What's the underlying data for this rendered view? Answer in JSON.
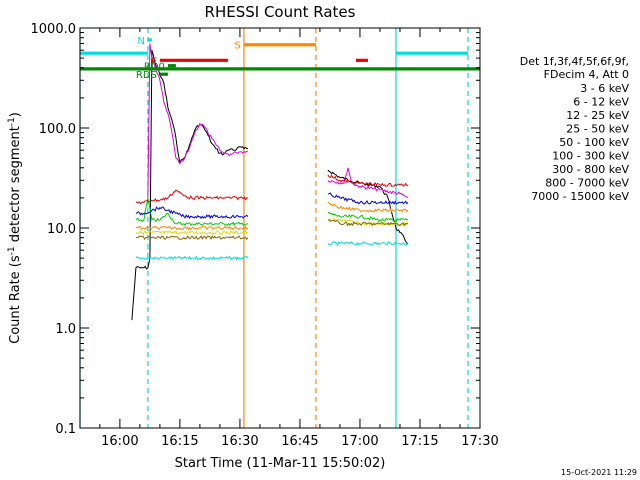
{
  "chart_data": {
    "type": "line",
    "title": "RHESSI Count Rates",
    "xlabel": "Start Time (11-Mar-11 15:50:02)",
    "ylabel_main": "Count Rate (s",
    "ylabel_sup1": "-1",
    "ylabel_mid": " detector segment",
    "ylabel_sup2": "-1",
    "ylabel_end": ")",
    "xlim": [
      "15:50:02",
      "17:30:00"
    ],
    "ylim": [
      0.1,
      1000
    ],
    "yscale": "log",
    "xticks": [
      "16:00",
      "16:15",
      "16:30",
      "16:45",
      "17:00",
      "17:15",
      "17:30"
    ],
    "yticks": [
      {
        "value": 0.1,
        "label": "0.1"
      },
      {
        "value": 1,
        "label": "1.0"
      },
      {
        "value": 10,
        "label": "10.0"
      },
      {
        "value": 100,
        "label": "100.0"
      },
      {
        "value": 1000,
        "label": "1000.0"
      }
    ],
    "legend": {
      "placement": "right",
      "header1": "Det 1f,3f,4f,5f,6f,9f,",
      "header2": "FDecim 4, Att 0"
    },
    "series": [
      {
        "name": "3 - 6 keV",
        "color": "#000000",
        "segments": [
          {
            "x": [
              "16:03",
              "16:04",
              "16:05",
              "16:06",
              "16:07",
              "16:07:30",
              "16:08",
              "16:09",
              "16:10",
              "16:11",
              "16:12",
              "16:13",
              "16:14",
              "16:15",
              "16:16",
              "16:17",
              "16:18",
              "16:19",
              "16:20",
              "16:21",
              "16:22",
              "16:23",
              "16:24",
              "16:25",
              "16:26",
              "16:27",
              "16:28",
              "16:29",
              "16:30",
              "16:31",
              "16:32"
            ],
            "y": [
              1.2,
              4,
              4,
              4,
              4,
              5,
              600,
              420,
              340,
              280,
              160,
              120,
              80,
              45,
              50,
              60,
              80,
              100,
              110,
              100,
              85,
              70,
              62,
              56,
              55,
              60,
              62,
              60,
              65,
              62,
              62
            ]
          },
          {
            "x": [
              "16:52",
              "16:55",
              "17:00",
              "17:05",
              "17:07",
              "17:09",
              "17:10",
              "17:12"
            ],
            "y": [
              38,
              32,
              28,
              26,
              20,
              10,
              9,
              7
            ]
          }
        ]
      },
      {
        "name": "6 - 12 keV",
        "color": "#dd00dd",
        "segments": [
          {
            "x": [
              "16:07",
              "16:07:30",
              "16:08",
              "16:09",
              "16:10",
              "16:11",
              "16:12",
              "16:13",
              "16:14",
              "16:15",
              "16:16",
              "16:17",
              "16:18",
              "16:19",
              "16:20",
              "16:21",
              "16:22",
              "16:23",
              "16:24",
              "16:25",
              "16:26",
              "16:27",
              "16:28",
              "16:29",
              "16:30",
              "16:31",
              "16:32"
            ],
            "y": [
              20,
              700,
              500,
              380,
              300,
              180,
              140,
              90,
              50,
              44,
              48,
              58,
              75,
              95,
              110,
              105,
              90,
              78,
              68,
              60,
              56,
              55,
              55,
              57,
              58,
              58,
              58
            ]
          },
          {
            "x": [
              "16:52",
              "16:56",
              "16:57",
              "16:58",
              "17:00",
              "17:05",
              "17:10",
              "17:12"
            ],
            "y": [
              30,
              28,
              40,
              28,
              26,
              24,
              22,
              20
            ]
          }
        ]
      },
      {
        "name": "12 - 25 keV",
        "color": "#00cc00",
        "segments": [
          {
            "x": [
              "16:04",
              "16:06",
              "16:07",
              "16:08",
              "16:10",
              "16:12",
              "16:14",
              "16:16",
              "16:18",
              "16:20",
              "16:22",
              "16:24",
              "16:26",
              "16:28",
              "16:30",
              "16:32"
            ],
            "y": [
              12,
              12,
              20,
              12,
              12,
              14,
              11,
              11,
              11,
              11,
              11,
              11,
              11,
              11,
              11,
              11
            ]
          },
          {
            "x": [
              "16:52",
              "16:55",
              "17:00",
              "17:05",
              "17:10",
              "17:12"
            ],
            "y": [
              14,
              13,
              13,
              12,
              12,
              12
            ]
          }
        ]
      },
      {
        "name": "25 - 50 keV",
        "color": "#00dddd",
        "segments": [
          {
            "x": [
              "16:04",
              "16:06",
              "16:08",
              "16:10",
              "16:12",
              "16:14",
              "16:16",
              "16:18",
              "16:20",
              "16:22",
              "16:24",
              "16:26",
              "16:28",
              "16:30",
              "16:32"
            ],
            "y": [
              5,
              5,
              5,
              5,
              5,
              5,
              5,
              5,
              5,
              5,
              5,
              5,
              5,
              5,
              5
            ]
          },
          {
            "x": [
              "16:52",
              "16:55",
              "17:00",
              "17:05",
              "17:10",
              "17:12"
            ],
            "y": [
              7,
              7,
              7,
              7,
              7,
              7
            ]
          }
        ]
      },
      {
        "name": "50 - 100 keV",
        "color": "#dddd00",
        "segments": [
          {
            "x": [
              "16:04",
              "16:08",
              "16:12",
              "16:16",
              "16:20",
              "16:24",
              "16:28",
              "16:32"
            ],
            "y": [
              9,
              9,
              9,
              9,
              9,
              9,
              9,
              9
            ]
          },
          {
            "x": [
              "16:52",
              "16:56",
              "17:00",
              "17:04",
              "17:08",
              "17:12"
            ],
            "y": [
              12,
              12,
              11,
              11,
              11,
              11
            ]
          }
        ]
      },
      {
        "name": "100 - 300 keV",
        "color": "#ee0000",
        "segments": [
          {
            "x": [
              "16:04",
              "16:06",
              "16:08",
              "16:10",
              "16:12",
              "16:14",
              "16:16",
              "16:18",
              "16:20",
              "16:22",
              "16:24",
              "16:26",
              "16:28",
              "16:30",
              "16:32"
            ],
            "y": [
              18,
              18,
              19,
              19,
              20,
              24,
              21,
              20,
              20,
              20,
              20,
              20,
              20,
              20,
              20
            ]
          },
          {
            "x": [
              "16:52",
              "16:55",
              "17:00",
              "17:05",
              "17:10",
              "17:12"
            ],
            "y": [
              34,
              30,
              28,
              27,
              27,
              27
            ]
          }
        ]
      },
      {
        "name": "300 - 800 keV",
        "color": "#0000ee",
        "segments": [
          {
            "x": [
              "16:04",
              "16:06",
              "16:08",
              "16:10",
              "16:12",
              "16:14",
              "16:16",
              "16:18",
              "16:20",
              "16:22",
              "16:24",
              "16:26",
              "16:28",
              "16:30",
              "16:32"
            ],
            "y": [
              14,
              14,
              15,
              16,
              15,
              14,
              13,
              13,
              13,
              13,
              13,
              13,
              13,
              13,
              13
            ]
          },
          {
            "x": [
              "16:52",
              "16:55",
              "17:00",
              "17:05",
              "17:10",
              "17:12"
            ],
            "y": [
              22,
              20,
              18,
              18,
              18,
              18
            ]
          }
        ]
      },
      {
        "name": "800 - 7000 keV",
        "color": "#ff8800",
        "segments": [
          {
            "x": [
              "16:04",
              "16:06",
              "16:08",
              "16:10",
              "16:12",
              "16:14",
              "16:16",
              "16:18",
              "16:20",
              "16:22",
              "16:24",
              "16:26",
              "16:28",
              "16:30",
              "16:32"
            ],
            "y": [
              10,
              10,
              10,
              10,
              10,
              10,
              10,
              10,
              10,
              10,
              10,
              10,
              10,
              10,
              10
            ]
          },
          {
            "x": [
              "16:52",
              "16:55",
              "17:00",
              "17:05",
              "17:10",
              "17:12"
            ],
            "y": [
              18,
              16,
              15,
              15,
              15,
              15
            ]
          }
        ]
      },
      {
        "name": "7000 - 15000 keV",
        "color": "#886600",
        "segments": [
          {
            "x": [
              "16:04",
              "16:08",
              "16:12",
              "16:16",
              "16:20",
              "16:24",
              "16:28",
              "16:32"
            ],
            "y": [
              8,
              8,
              8,
              8,
              8,
              8,
              8,
              8
            ]
          },
          {
            "x": [
              "16:52",
              "16:56",
              "17:00",
              "17:04",
              "17:08",
              "17:12"
            ],
            "y": [
              12,
              11,
              11,
              11,
              11,
              11
            ]
          }
        ]
      }
    ],
    "flag_bars": [
      {
        "label": "",
        "color": "#00dddd",
        "y": 560,
        "x0": "15:50:02",
        "x1": "16:07"
      },
      {
        "label": "",
        "color": "#00dddd",
        "y": 560,
        "x0": "17:09",
        "x1": "17:27"
      },
      {
        "label": "",
        "color": "#008800",
        "y": 390,
        "x0": "15:50:02",
        "x1": "17:30:00"
      },
      {
        "label": "F",
        "color": "#ee0000",
        "y": 475,
        "x0": "16:10",
        "x1": "16:27"
      },
      {
        "label": "",
        "color": "#ee0000",
        "y": 475,
        "x0": "16:59",
        "x1": "17:02"
      },
      {
        "label": "S",
        "color": "#ff8800",
        "y": 680,
        "x0": "16:31",
        "x1": "16:49"
      },
      {
        "label": "N",
        "color": "#00dddd",
        "y": 760,
        "x0": "16:07",
        "x1": "16:08"
      },
      {
        "label": "RD0",
        "color": "#008800",
        "y": 420,
        "x0": "16:12",
        "x1": "16:14"
      },
      {
        "label": "RDS",
        "color": "#008800",
        "y": 345,
        "x0": "16:10",
        "x1": "16:12"
      }
    ],
    "vlines": [
      {
        "x": "15:50:02",
        "color": "#00dddd",
        "style": "solid"
      },
      {
        "x": "16:07",
        "color": "#00dddd",
        "style": "dashed"
      },
      {
        "x": "16:31",
        "color": "#ff8800",
        "style": "solid"
      },
      {
        "x": "16:49",
        "color": "#ff8800",
        "style": "dashed"
      },
      {
        "x": "17:09",
        "color": "#00dddd",
        "style": "solid"
      },
      {
        "x": "17:27",
        "color": "#00dddd",
        "style": "dashed"
      }
    ],
    "footer_date": "15-Oct-2021 11:29"
  }
}
